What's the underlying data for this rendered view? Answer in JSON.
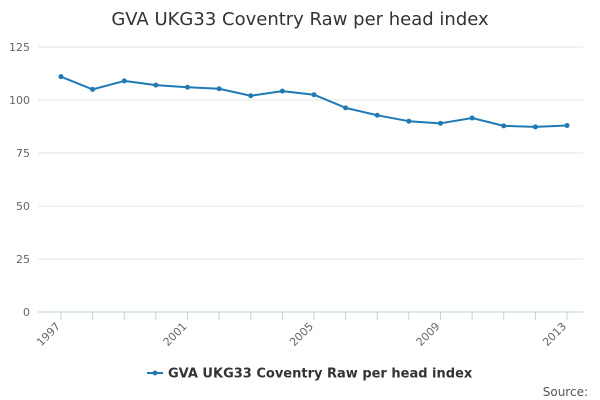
{
  "chart_data": {
    "type": "line",
    "title": "GVA UKG33 Coventry Raw per head index",
    "xlabel": "",
    "ylabel": "",
    "x": [
      1997,
      1998,
      1999,
      2000,
      2001,
      2002,
      2003,
      2004,
      2005,
      2006,
      2007,
      2008,
      2009,
      2010,
      2011,
      2012,
      2013
    ],
    "x_tick_labels": [
      "1997",
      "2001",
      "2005",
      "2009",
      "2013"
    ],
    "y_ticks": [
      0,
      25,
      50,
      75,
      100,
      125
    ],
    "ylim": [
      0,
      125
    ],
    "grid": true,
    "series": [
      {
        "name": "GVA UKG33 Coventry Raw per head index",
        "color": "#1f7ab5",
        "values": [
          111,
          105,
          109,
          107,
          106,
          105.3,
          102,
          104.2,
          102.5,
          96.3,
          92.8,
          90,
          89,
          91.5,
          87.8,
          87.3,
          88
        ]
      }
    ],
    "legend": {
      "position": "bottom-center",
      "label": "GVA UKG33 Coventry Raw per head index"
    },
    "credit": "Source:"
  }
}
